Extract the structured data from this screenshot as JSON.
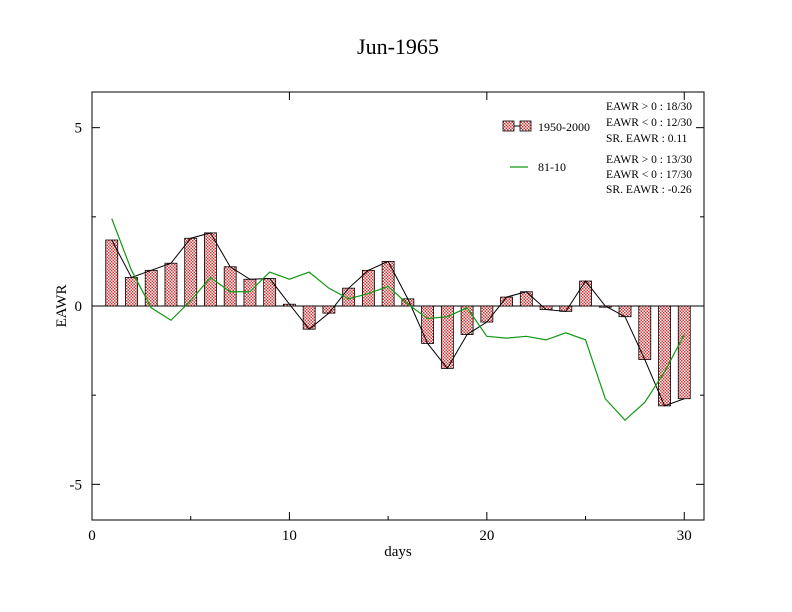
{
  "chart_data": {
    "type": "bar",
    "title": "Jun-1965",
    "xlabel": "days",
    "ylabel": "EAWR",
    "xlim": [
      0,
      31
    ],
    "ylim": [
      -6,
      6
    ],
    "x_ticks": [
      0,
      10,
      20,
      30
    ],
    "y_ticks": [
      -5,
      0,
      5
    ],
    "grid": false,
    "legend": "top-right",
    "x": [
      1,
      2,
      3,
      4,
      5,
      6,
      7,
      8,
      9,
      10,
      11,
      12,
      13,
      14,
      15,
      16,
      17,
      18,
      19,
      20,
      21,
      22,
      23,
      24,
      25,
      26,
      27,
      28,
      29,
      30
    ],
    "series": [
      {
        "name": "1950-2000",
        "type": "bar+line",
        "color": "#e06060",
        "values": [
          1.85,
          0.8,
          1.0,
          1.2,
          1.9,
          2.05,
          1.1,
          0.75,
          0.77,
          0.05,
          -0.65,
          -0.2,
          0.5,
          1.0,
          1.25,
          0.2,
          -1.05,
          -1.75,
          -0.8,
          -0.45,
          0.25,
          0.4,
          -0.1,
          -0.15,
          0.7,
          0.0,
          -0.3,
          -1.5,
          -2.8,
          -2.6
        ]
      },
      {
        "name": "81-10",
        "type": "line",
        "color": "#119911",
        "values": [
          2.45,
          1.0,
          -0.05,
          -0.4,
          0.15,
          0.8,
          0.4,
          0.4,
          0.95,
          0.75,
          0.95,
          0.5,
          0.2,
          0.35,
          0.55,
          0.05,
          -0.35,
          -0.3,
          -0.05,
          -0.85,
          -0.9,
          -0.85,
          -0.95,
          -0.75,
          -0.95,
          -2.6,
          -3.2,
          -2.7,
          -1.85,
          -0.8
        ]
      }
    ],
    "stats": {
      "base": [
        "EAWR > 0 : 18/30",
        "EAWR < 0 : 12/30",
        "SR. EAWR :  0.11"
      ],
      "recent": [
        "EAWR > 0 : 13/30",
        "EAWR < 0 : 17/30",
        "SR. EAWR : -0.26"
      ]
    }
  }
}
